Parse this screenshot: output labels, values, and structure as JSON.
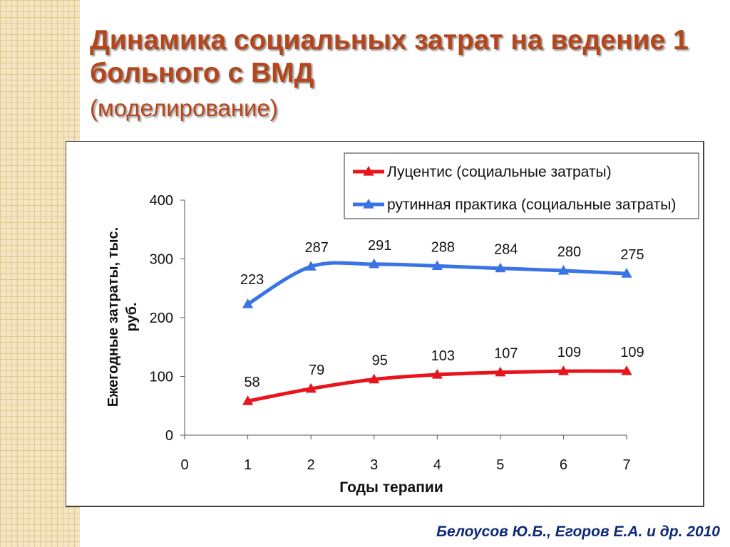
{
  "slide": {
    "title": "Динамика социальных затрат на ведение 1 больного с ВМД",
    "subtitle": "(моделирование)",
    "citation": "Белоусов Ю.Б., Егоров Е.А. и др. 2010"
  },
  "chart_data": {
    "type": "line",
    "title": "",
    "xlabel": "Годы терапии",
    "ylabel": "Ежегодные  затраты, тыс. руб.",
    "x": [
      1,
      2,
      3,
      4,
      5,
      6,
      7
    ],
    "xticks": [
      "0",
      "1",
      "2",
      "3",
      "4",
      "5",
      "6",
      "7"
    ],
    "xlim": [
      0,
      7
    ],
    "yticks": [
      "0",
      "100",
      "200",
      "300",
      "400"
    ],
    "ylim": [
      0,
      400
    ],
    "grid": false,
    "legend": "top-right",
    "series": [
      {
        "name": "Луцентис (социальные затраты)",
        "values": [
          58,
          79,
          95,
          103,
          107,
          109,
          109
        ],
        "labels": [
          "58",
          "79",
          "95",
          "103",
          "107",
          "109",
          "109"
        ],
        "color": "#e8141b"
      },
      {
        "name": "рутинная практика (социальные затраты)",
        "values": [
          223,
          287,
          291,
          288,
          284,
          280,
          275
        ],
        "labels": [
          "223",
          "287",
          "291",
          "288",
          "284",
          "280",
          "275"
        ],
        "color": "#3a73e6"
      }
    ]
  }
}
